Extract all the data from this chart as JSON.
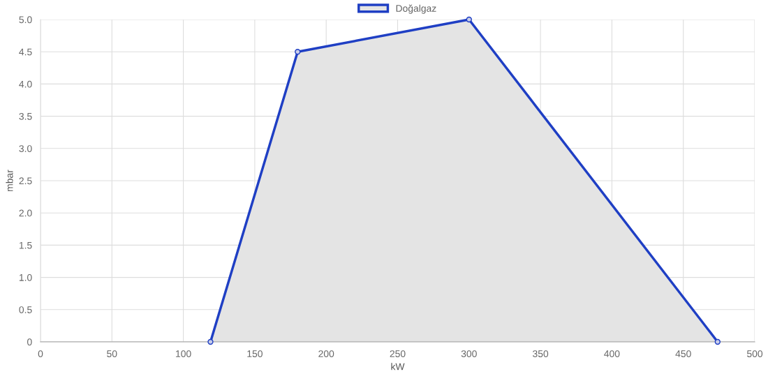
{
  "chart_data": {
    "type": "area",
    "xlabel": "kW",
    "ylabel": "mbar",
    "series": [
      {
        "name": "Doğalgaz",
        "color": "#1f3fc4",
        "x": [
          119,
          180,
          300,
          474
        ],
        "values": [
          0,
          4.5,
          5,
          0
        ]
      }
    ],
    "xlim": [
      0,
      500
    ],
    "xticks": [
      0,
      50,
      100,
      150,
      200,
      250,
      300,
      350,
      400,
      450,
      500
    ],
    "ylim": [
      0,
      5
    ],
    "yticks": [
      {
        "value": 0,
        "label": "0"
      },
      {
        "value": 0.5,
        "label": "0.5"
      },
      {
        "value": 1,
        "label": "1.0"
      },
      {
        "value": 1.5,
        "label": "1.5"
      },
      {
        "value": 2,
        "label": "2.0"
      },
      {
        "value": 2.5,
        "label": "2.5"
      },
      {
        "value": 3,
        "label": "3.0"
      },
      {
        "value": 3.5,
        "label": "3.5"
      },
      {
        "value": 4,
        "label": "4.0"
      },
      {
        "value": 4.5,
        "label": "4.5"
      },
      {
        "value": 5,
        "label": "5.0"
      }
    ],
    "grid": true,
    "legend": "top",
    "marker": "circle",
    "line_style": "solid"
  }
}
